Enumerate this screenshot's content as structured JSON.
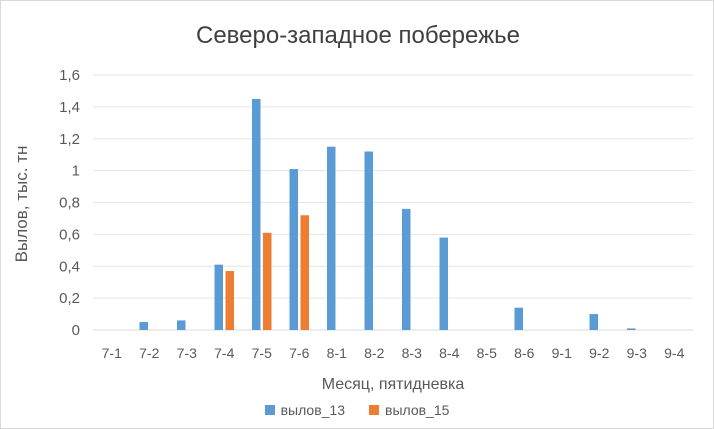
{
  "chart_data": {
    "type": "bar",
    "title": "Северо-западное побережье",
    "xlabel": "Месяц, пятидневка",
    "ylabel": "Вылов, тыс. тн",
    "ylim": [
      0,
      1.6
    ],
    "yticks": [
      "0",
      "0,2",
      "0,4",
      "0,6",
      "0,8",
      "1",
      "1,2",
      "1,4",
      "1,6"
    ],
    "grid": true,
    "legend_position": "bottom",
    "categories": [
      "7-1",
      "7-2",
      "7-3",
      "7-4",
      "7-5",
      "7-6",
      "8-1",
      "8-2",
      "8-3",
      "8-4",
      "8-5",
      "8-6",
      "9-1",
      "9-2",
      "9-3",
      "9-4"
    ],
    "series": [
      {
        "name": "вылов_13",
        "color": "#5b9bd5",
        "values": [
          0,
          0.05,
          0.06,
          0.41,
          1.45,
          1.01,
          1.15,
          1.12,
          0.76,
          0.58,
          0,
          0.14,
          0,
          0.1,
          0.01,
          0
        ]
      },
      {
        "name": "вылов_15",
        "color": "#ed7d31",
        "values": [
          0,
          0,
          0,
          0.37,
          0.61,
          0.72,
          0,
          0,
          0,
          0,
          0,
          0,
          0,
          0,
          0,
          0
        ]
      }
    ]
  }
}
